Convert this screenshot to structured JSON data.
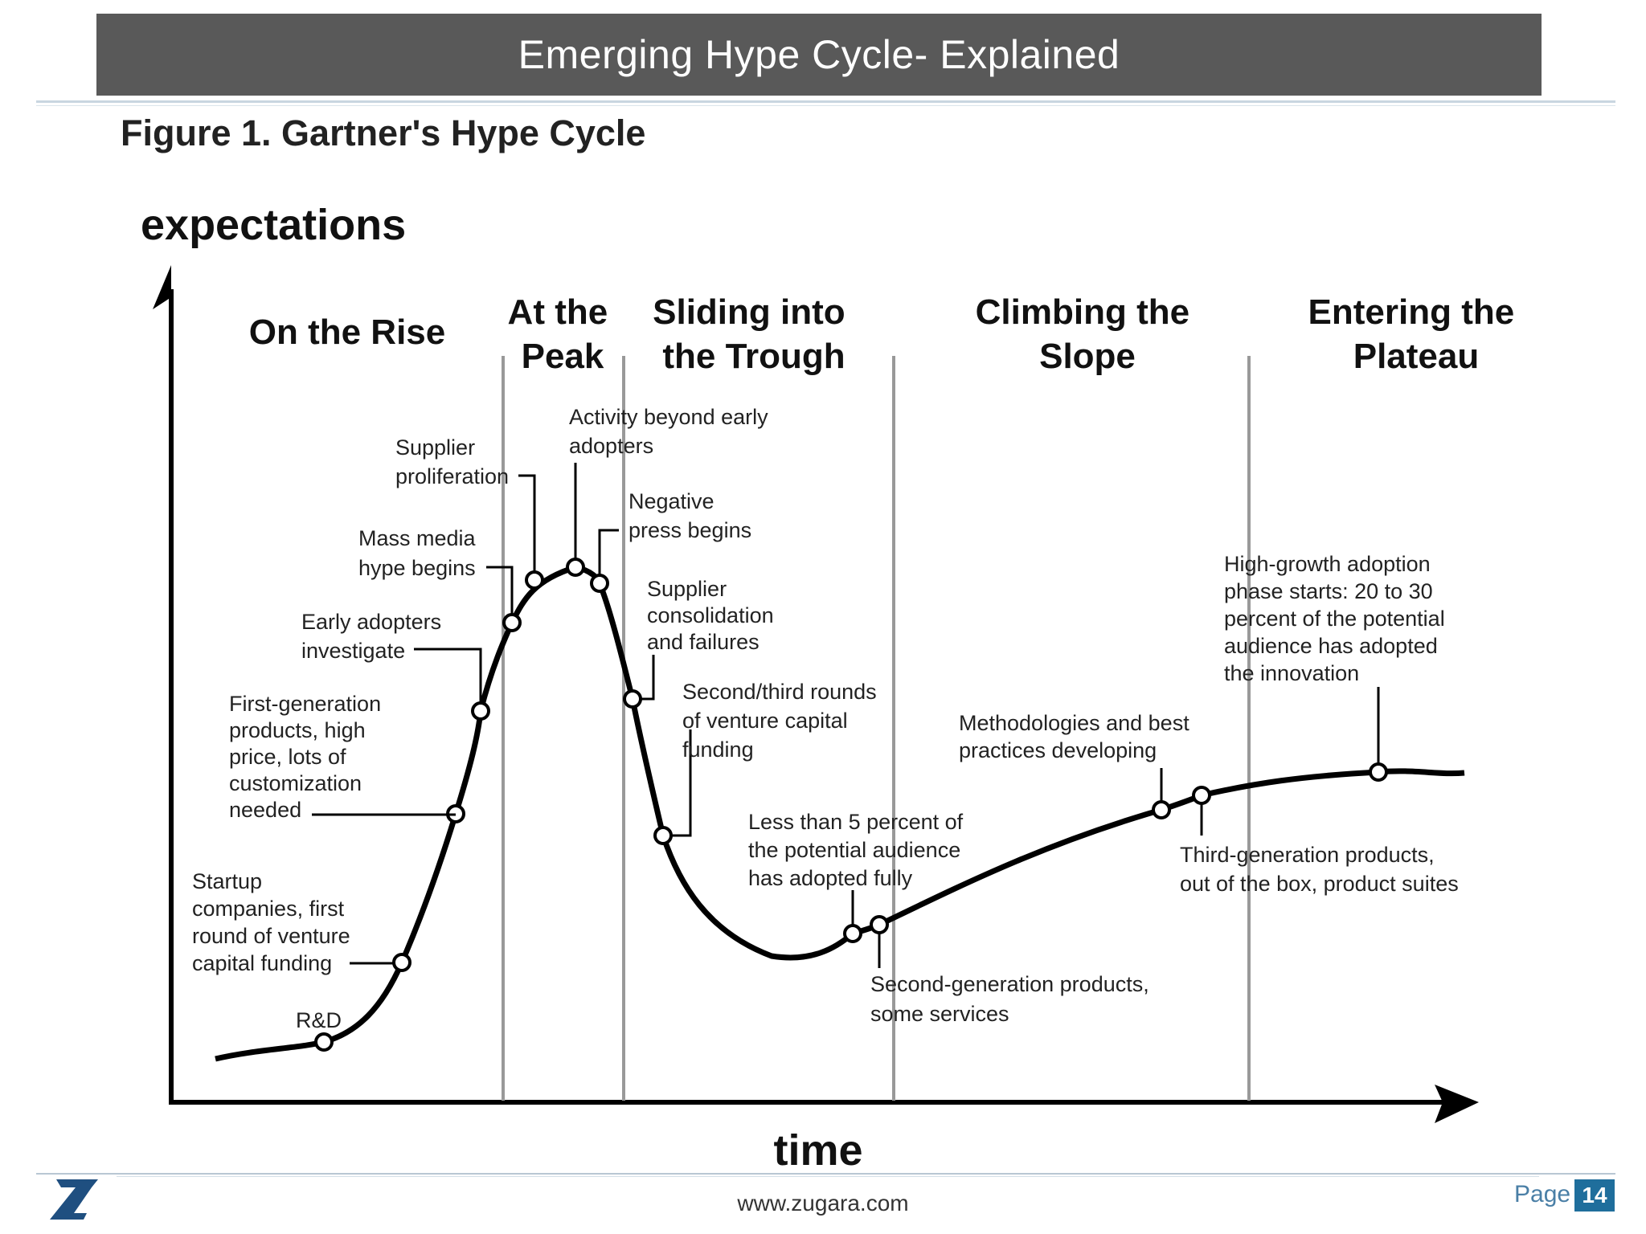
{
  "slide": {
    "title": "Emerging Hype Cycle- Explained",
    "figure_title": "Figure 1. Gartner's Hype Cycle",
    "footer_url": "www.zugara.com",
    "page_label": "Page",
    "page_number": "14",
    "logo_text": "zugara"
  },
  "diagram": {
    "y_axis_label": "expectations",
    "x_axis_label": "time",
    "phases": [
      {
        "lines": [
          "On the Rise"
        ]
      },
      {
        "lines": [
          "At the",
          "Peak"
        ]
      },
      {
        "lines": [
          "Sliding into",
          "the Trough"
        ]
      },
      {
        "lines": [
          "Climbing the",
          "Slope"
        ]
      },
      {
        "lines": [
          "Entering the",
          "Plateau"
        ]
      }
    ],
    "annotations": [
      {
        "id": "rd",
        "lines": [
          "R&D"
        ]
      },
      {
        "id": "startup",
        "lines": [
          "Startup",
          "companies, first",
          "round of venture",
          "capital funding"
        ]
      },
      {
        "id": "first-gen",
        "lines": [
          "First-generation",
          "products, high",
          "price, lots of",
          "customization",
          "needed"
        ]
      },
      {
        "id": "early-adopters",
        "lines": [
          "Early adopters",
          "investigate"
        ]
      },
      {
        "id": "mass-media",
        "lines": [
          "Mass media",
          "hype begins"
        ]
      },
      {
        "id": "supplier-prolif",
        "lines": [
          "Supplier",
          "proliferation"
        ]
      },
      {
        "id": "activity",
        "lines": [
          "Activity beyond early",
          "adopters"
        ]
      },
      {
        "id": "negative-press",
        "lines": [
          "Negative",
          "press begins"
        ]
      },
      {
        "id": "supplier-consol",
        "lines": [
          "Supplier",
          "consolidation",
          "and failures"
        ]
      },
      {
        "id": "second-third",
        "lines": [
          "Second/third rounds",
          "of venture capital",
          "funding"
        ]
      },
      {
        "id": "less-than-5",
        "lines": [
          "Less than 5 percent of",
          "the potential audience",
          "has adopted fully"
        ]
      },
      {
        "id": "second-gen",
        "lines": [
          "Second-generation products,",
          "some services"
        ]
      },
      {
        "id": "methodologies",
        "lines": [
          "Methodologies and best",
          "practices developing"
        ]
      },
      {
        "id": "third-gen",
        "lines": [
          "Third-generation products,",
          "out of the box, product suites"
        ]
      },
      {
        "id": "high-growth",
        "lines": [
          "High-growth adoption",
          "phase starts: 20 to 30",
          "percent of the potential",
          "audience has adopted",
          "the innovation"
        ]
      }
    ]
  }
}
